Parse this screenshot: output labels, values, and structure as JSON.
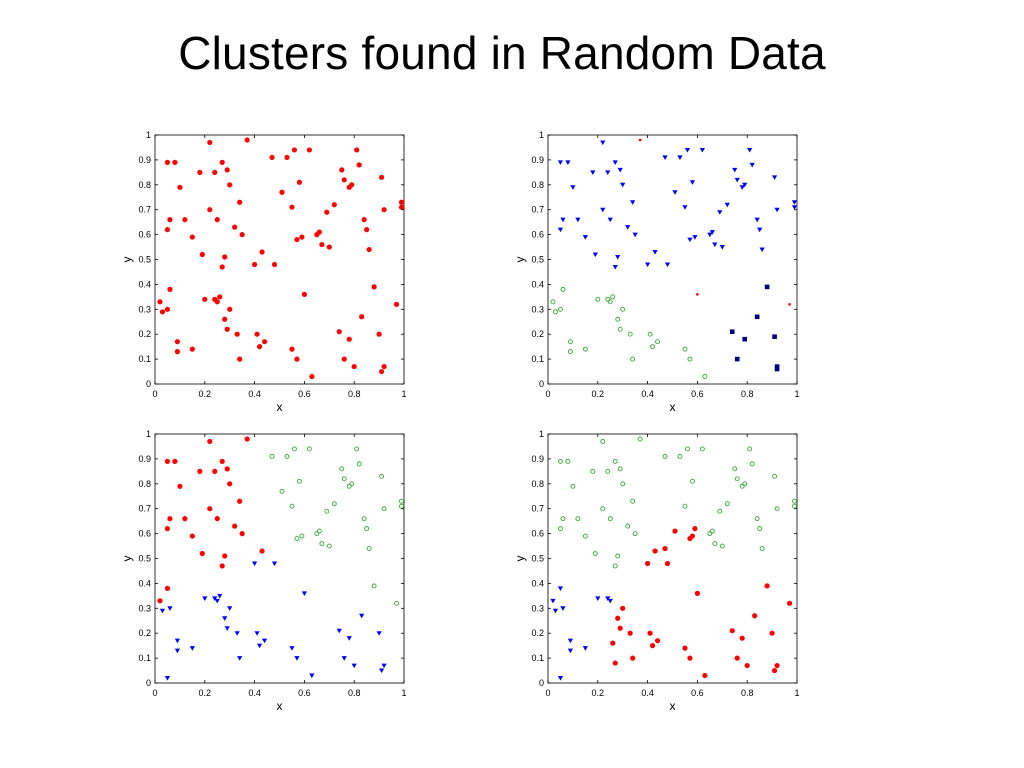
{
  "slide": {
    "title": "Clusters found in Random Data"
  },
  "colors": {
    "red": "#ff0000",
    "blue": "#0000ff",
    "green": "#33aa33",
    "navy": "#000080"
  },
  "chart_data": [
    {
      "type": "scatter",
      "title": "",
      "xlabel": "x",
      "ylabel": "y",
      "xlim": [
        0,
        1
      ],
      "ylim": [
        0,
        1
      ],
      "xticks": [
        "0",
        "0.2",
        "0.4",
        "0.6",
        "0.8",
        "1"
      ],
      "yticks": [
        "0",
        "0.1",
        "0.2",
        "0.3",
        "0.4",
        "0.5",
        "0.6",
        "0.7",
        "0.8",
        "0.9",
        "1"
      ],
      "grid": false,
      "series": [
        {
          "color": "red",
          "marker": "dot",
          "x": [
            0.05,
            0.08,
            0.22,
            0.37,
            0.1,
            0.18,
            0.24,
            0.27,
            0.29,
            0.3,
            0.05,
            0.06,
            0.12,
            0.15,
            0.22,
            0.25,
            0.34,
            0.32,
            0.35,
            0.19,
            0.28,
            0.27,
            0.4,
            0.43,
            0.47,
            0.48,
            0.53,
            0.56,
            0.57,
            0.59,
            0.51,
            0.55,
            0.62,
            0.58,
            0.65,
            0.66,
            0.67,
            0.69,
            0.7,
            0.72,
            0.75,
            0.76,
            0.78,
            0.79,
            0.81,
            0.82,
            0.84,
            0.85,
            0.86,
            0.91,
            0.92,
            0.99,
            0.99,
            0.02,
            0.03,
            0.06,
            0.05,
            0.09,
            0.09,
            0.15,
            0.2,
            0.24,
            0.25,
            0.26,
            0.28,
            0.29,
            0.3,
            0.33,
            0.34,
            0.41,
            0.42,
            0.44,
            0.55,
            0.57,
            0.6,
            0.63,
            0.74,
            0.76,
            0.78,
            0.8,
            0.83,
            0.88,
            0.9,
            0.91,
            0.92,
            0.97
          ],
          "y": [
            0.89,
            0.89,
            0.97,
            0.98,
            0.79,
            0.85,
            0.85,
            0.89,
            0.86,
            0.8,
            0.62,
            0.66,
            0.66,
            0.59,
            0.7,
            0.66,
            0.73,
            0.63,
            0.6,
            0.52,
            0.51,
            0.47,
            0.48,
            0.53,
            0.91,
            0.48,
            0.91,
            0.94,
            0.58,
            0.59,
            0.77,
            0.71,
            0.94,
            0.81,
            0.6,
            0.61,
            0.56,
            0.69,
            0.55,
            0.72,
            0.86,
            0.82,
            0.79,
            0.8,
            0.94,
            0.88,
            0.66,
            0.62,
            0.54,
            0.83,
            0.7,
            0.73,
            0.71,
            0.33,
            0.29,
            0.38,
            0.3,
            0.17,
            0.13,
            0.14,
            0.34,
            0.34,
            0.33,
            0.35,
            0.26,
            0.22,
            0.3,
            0.2,
            0.1,
            0.2,
            0.15,
            0.17,
            0.14,
            0.1,
            0.36,
            0.03,
            0.21,
            0.1,
            0.18,
            0.07,
            0.27,
            0.39,
            0.2,
            0.05,
            0.07,
            0.32
          ]
        }
      ]
    },
    {
      "type": "scatter",
      "title": "",
      "xlabel": "x",
      "ylabel": "y",
      "xlim": [
        0,
        1
      ],
      "ylim": [
        0,
        1
      ],
      "xticks": [
        "0",
        "0.2",
        "0.4",
        "0.6",
        "0.8",
        "1"
      ],
      "yticks": [
        "0",
        "0.1",
        "0.2",
        "0.3",
        "0.4",
        "0.5",
        "0.6",
        "0.7",
        "0.8",
        "0.9",
        "1"
      ],
      "grid": false,
      "series": [
        {
          "color": "blue",
          "marker": "triangle",
          "x": [
            0.05,
            0.08,
            0.22,
            0.1,
            0.18,
            0.24,
            0.27,
            0.29,
            0.3,
            0.05,
            0.06,
            0.12,
            0.15,
            0.22,
            0.25,
            0.34,
            0.32,
            0.35,
            0.19,
            0.28,
            0.27,
            0.4,
            0.43,
            0.47,
            0.48,
            0.53,
            0.56,
            0.57,
            0.59,
            0.51,
            0.55,
            0.62,
            0.58,
            0.65,
            0.66,
            0.67,
            0.69,
            0.7,
            0.72,
            0.75,
            0.76,
            0.78,
            0.79,
            0.81,
            0.82,
            0.84,
            0.85,
            0.86,
            0.91,
            0.92,
            0.99,
            0.99
          ],
          "y": [
            0.89,
            0.89,
            0.97,
            0.79,
            0.85,
            0.85,
            0.89,
            0.86,
            0.8,
            0.62,
            0.66,
            0.66,
            0.59,
            0.7,
            0.66,
            0.73,
            0.63,
            0.6,
            0.52,
            0.51,
            0.47,
            0.48,
            0.53,
            0.91,
            0.48,
            0.91,
            0.94,
            0.58,
            0.59,
            0.77,
            0.71,
            0.94,
            0.81,
            0.6,
            0.61,
            0.56,
            0.69,
            0.55,
            0.72,
            0.86,
            0.82,
            0.79,
            0.8,
            0.94,
            0.88,
            0.66,
            0.62,
            0.54,
            0.83,
            0.7,
            0.73,
            0.71
          ]
        },
        {
          "color": "red",
          "marker": "small-dot",
          "x": [
            0.37,
            0.6,
            0.97
          ],
          "y": [
            0.98,
            0.36,
            0.32
          ]
        },
        {
          "color": "green",
          "marker": "ring",
          "x": [
            0.02,
            0.03,
            0.06,
            0.05,
            0.09,
            0.09,
            0.15,
            0.2,
            0.24,
            0.25,
            0.26,
            0.28,
            0.29,
            0.3,
            0.33,
            0.34,
            0.41,
            0.42,
            0.44,
            0.55,
            0.57,
            0.63
          ],
          "y": [
            0.33,
            0.29,
            0.38,
            0.3,
            0.17,
            0.13,
            0.14,
            0.34,
            0.34,
            0.33,
            0.35,
            0.26,
            0.22,
            0.3,
            0.2,
            0.1,
            0.2,
            0.15,
            0.17,
            0.14,
            0.1,
            0.03
          ]
        },
        {
          "color": "navy",
          "marker": "square",
          "x": [
            0.74,
            0.76,
            0.79,
            0.84,
            0.88,
            0.91,
            0.92,
            0.92
          ],
          "y": [
            0.21,
            0.1,
            0.18,
            0.27,
            0.39,
            0.19,
            0.06,
            0.07
          ]
        }
      ]
    },
    {
      "type": "scatter",
      "title": "",
      "xlabel": "x",
      "ylabel": "y",
      "xlim": [
        0,
        1
      ],
      "ylim": [
        0,
        1
      ],
      "xticks": [
        "0",
        "0.2",
        "0.4",
        "0.6",
        "0.8",
        "1"
      ],
      "yticks": [
        "0",
        "0.1",
        "0.2",
        "0.3",
        "0.4",
        "0.5",
        "0.6",
        "0.7",
        "0.8",
        "0.9",
        "1"
      ],
      "grid": false,
      "series": [
        {
          "color": "red",
          "marker": "dot",
          "x": [
            0.05,
            0.08,
            0.22,
            0.37,
            0.1,
            0.18,
            0.24,
            0.27,
            0.29,
            0.3,
            0.05,
            0.06,
            0.12,
            0.15,
            0.22,
            0.25,
            0.34,
            0.32,
            0.35,
            0.19,
            0.28,
            0.27,
            0.43,
            0.02,
            0.05
          ],
          "y": [
            0.89,
            0.89,
            0.97,
            0.98,
            0.79,
            0.85,
            0.85,
            0.89,
            0.86,
            0.8,
            0.62,
            0.66,
            0.66,
            0.59,
            0.7,
            0.66,
            0.73,
            0.63,
            0.6,
            0.52,
            0.51,
            0.47,
            0.53,
            0.33,
            0.38
          ]
        },
        {
          "color": "green",
          "marker": "ring",
          "x": [
            0.47,
            0.53,
            0.56,
            0.57,
            0.59,
            0.51,
            0.55,
            0.62,
            0.58,
            0.65,
            0.66,
            0.67,
            0.69,
            0.7,
            0.72,
            0.75,
            0.76,
            0.78,
            0.79,
            0.81,
            0.82,
            0.84,
            0.85,
            0.86,
            0.91,
            0.92,
            0.99,
            0.99,
            0.88,
            0.97
          ],
          "y": [
            0.91,
            0.91,
            0.94,
            0.58,
            0.59,
            0.77,
            0.71,
            0.94,
            0.81,
            0.6,
            0.61,
            0.56,
            0.69,
            0.55,
            0.72,
            0.86,
            0.82,
            0.79,
            0.8,
            0.94,
            0.88,
            0.66,
            0.62,
            0.54,
            0.83,
            0.7,
            0.73,
            0.71,
            0.39,
            0.32
          ]
        },
        {
          "color": "blue",
          "marker": "triangle",
          "x": [
            0.4,
            0.48,
            0.03,
            0.06,
            0.09,
            0.09,
            0.15,
            0.2,
            0.24,
            0.25,
            0.26,
            0.28,
            0.29,
            0.3,
            0.33,
            0.34,
            0.41,
            0.42,
            0.44,
            0.55,
            0.57,
            0.6,
            0.63,
            0.74,
            0.76,
            0.78,
            0.8,
            0.83,
            0.9,
            0.91,
            0.92,
            0.05
          ],
          "y": [
            0.48,
            0.48,
            0.29,
            0.3,
            0.17,
            0.13,
            0.14,
            0.34,
            0.34,
            0.33,
            0.35,
            0.26,
            0.22,
            0.3,
            0.2,
            0.1,
            0.2,
            0.15,
            0.17,
            0.14,
            0.1,
            0.36,
            0.03,
            0.21,
            0.1,
            0.18,
            0.07,
            0.27,
            0.2,
            0.05,
            0.07,
            0.02
          ]
        }
      ]
    },
    {
      "type": "scatter",
      "title": "",
      "xlabel": "x",
      "ylabel": "y",
      "xlim": [
        0,
        1
      ],
      "ylim": [
        0,
        1
      ],
      "xticks": [
        "0",
        "0.2",
        "0.4",
        "0.6",
        "0.8",
        "1"
      ],
      "yticks": [
        "0",
        "0.1",
        "0.2",
        "0.3",
        "0.4",
        "0.5",
        "0.6",
        "0.7",
        "0.8",
        "0.9",
        "1"
      ],
      "grid": false,
      "series": [
        {
          "color": "green",
          "marker": "ring",
          "x": [
            0.05,
            0.08,
            0.22,
            0.37,
            0.1,
            0.18,
            0.24,
            0.27,
            0.29,
            0.3,
            0.05,
            0.06,
            0.12,
            0.15,
            0.22,
            0.25,
            0.34,
            0.32,
            0.35,
            0.19,
            0.28,
            0.27,
            0.47,
            0.53,
            0.56,
            0.55,
            0.62,
            0.58,
            0.65,
            0.66,
            0.67,
            0.69,
            0.7,
            0.72,
            0.75,
            0.76,
            0.78,
            0.79,
            0.81,
            0.82,
            0.84,
            0.85,
            0.86,
            0.91,
            0.92,
            0.99,
            0.99
          ],
          "y": [
            0.89,
            0.89,
            0.97,
            0.98,
            0.79,
            0.85,
            0.85,
            0.89,
            0.86,
            0.8,
            0.62,
            0.66,
            0.66,
            0.59,
            0.7,
            0.66,
            0.73,
            0.63,
            0.6,
            0.52,
            0.51,
            0.47,
            0.91,
            0.91,
            0.94,
            0.71,
            0.94,
            0.81,
            0.6,
            0.61,
            0.56,
            0.69,
            0.55,
            0.72,
            0.86,
            0.82,
            0.79,
            0.8,
            0.94,
            0.88,
            0.66,
            0.62,
            0.54,
            0.83,
            0.7,
            0.73,
            0.71
          ]
        },
        {
          "color": "red",
          "marker": "dot",
          "x": [
            0.4,
            0.43,
            0.48,
            0.47,
            0.51,
            0.57,
            0.58,
            0.59,
            0.6,
            0.28,
            0.29,
            0.3,
            0.33,
            0.34,
            0.41,
            0.42,
            0.44,
            0.55,
            0.57,
            0.63,
            0.74,
            0.76,
            0.78,
            0.8,
            0.83,
            0.88,
            0.9,
            0.91,
            0.92,
            0.97,
            0.26,
            0.27
          ],
          "y": [
            0.48,
            0.53,
            0.48,
            0.54,
            0.61,
            0.58,
            0.59,
            0.62,
            0.36,
            0.26,
            0.22,
            0.3,
            0.2,
            0.1,
            0.2,
            0.15,
            0.17,
            0.14,
            0.1,
            0.03,
            0.21,
            0.1,
            0.18,
            0.07,
            0.27,
            0.39,
            0.2,
            0.05,
            0.07,
            0.32,
            0.16,
            0.08
          ]
        },
        {
          "color": "blue",
          "marker": "triangle",
          "x": [
            0.02,
            0.03,
            0.06,
            0.05,
            0.09,
            0.09,
            0.15,
            0.2,
            0.24,
            0.25,
            0.05
          ],
          "y": [
            0.33,
            0.29,
            0.3,
            0.38,
            0.17,
            0.13,
            0.14,
            0.34,
            0.34,
            0.33,
            0.02
          ]
        }
      ]
    }
  ]
}
